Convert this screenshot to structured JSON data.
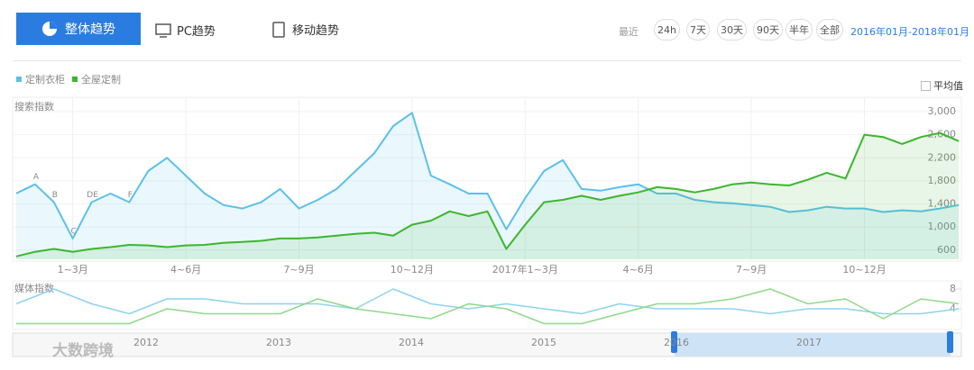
{
  "toolbar": {
    "overall": "整体趋势",
    "pc": "PC趋势",
    "mobile": "移动趋势",
    "recent": "最近",
    "ranges": [
      "24h",
      "7天",
      "30天",
      "90天",
      "半年",
      "全部"
    ],
    "period": "2016年01月-2018年01月",
    "average": "平均值"
  },
  "chart_data": [
    {
      "type": "area",
      "y_label": "搜索指数",
      "categories": [
        null,
        null,
        null,
        "1~3月",
        null,
        null,
        null,
        null,
        null,
        "4~6月",
        null,
        null,
        null,
        null,
        null,
        "7~9月",
        null,
        null,
        null,
        null,
        null,
        "10~12月",
        null,
        null,
        null,
        null,
        null,
        "2017年1~3月",
        null,
        null,
        null,
        null,
        null,
        "4~6月",
        null,
        null,
        null,
        null,
        null,
        "7~9月",
        null,
        null,
        null,
        null,
        null,
        "10~12月",
        null,
        null,
        null,
        null,
        null
      ],
      "series": [
        {
          "name": "定制衣柜",
          "color": "#5bc0eb",
          "fill": "rgba(91,192,235,0.13)",
          "values": [
            1582,
            1740,
            1430,
            800,
            1430,
            1580,
            1430,
            1970,
            2200,
            1890,
            1580,
            1380,
            1320,
            1430,
            1660,
            1320,
            1470,
            1660,
            1970,
            2280,
            2750,
            2980,
            1890,
            1740,
            1580,
            1580,
            960,
            1500,
            1970,
            2160,
            1660,
            1630,
            1690,
            1740,
            1580,
            1580,
            1470,
            1430,
            1410,
            1380,
            1350,
            1260,
            1290,
            1350,
            1320,
            1320,
            1260,
            1290,
            1270,
            1320,
            1380
          ]
        },
        {
          "name": "全屋定制",
          "color": "#3cb62e",
          "fill": "rgba(60,182,46,0.12)",
          "values": [
            490,
            570,
            620,
            570,
            620,
            650,
            690,
            680,
            650,
            680,
            690,
            725,
            740,
            760,
            800,
            800,
            820,
            850,
            880,
            900,
            850,
            1040,
            1110,
            1270,
            1190,
            1270,
            620,
            1040,
            1430,
            1470,
            1540,
            1470,
            1540,
            1600,
            1690,
            1660,
            1600,
            1660,
            1740,
            1770,
            1740,
            1720,
            1820,
            1940,
            1840,
            2600,
            2560,
            2440,
            2560,
            2630,
            2490
          ]
        }
      ],
      "annotations": [
        {
          "text": "A",
          "at": 1
        },
        {
          "text": "B",
          "at": 2
        },
        {
          "text": "C",
          "at": 3
        },
        {
          "text": "DE",
          "at": 4
        },
        {
          "text": "F",
          "at": 6
        }
      ],
      "ylim": [
        440,
        3250
      ],
      "yticks": [
        {
          "value": 600,
          "label": "600"
        },
        {
          "value": 1000,
          "label": "1,000"
        },
        {
          "value": 1400,
          "label": "1,400"
        },
        {
          "value": 1800,
          "label": "1,800"
        },
        {
          "value": 2200,
          "label": "2,200"
        },
        {
          "value": 2600,
          "label": "2,600"
        },
        {
          "value": 3000,
          "label": "3,000"
        }
      ],
      "grid": true
    },
    {
      "type": "line",
      "y_label": "媒体指数",
      "series": [
        {
          "name": "定制衣柜",
          "color": "#8ed3ee",
          "values": [
            5,
            8,
            5,
            3,
            6,
            6,
            5,
            5,
            5,
            4,
            8,
            5,
            4,
            5,
            4,
            3,
            5,
            4,
            4,
            4,
            3,
            4,
            4,
            3,
            3,
            4
          ]
        },
        {
          "name": "全屋定制",
          "color": "#8fd98a",
          "values": [
            1,
            1,
            1,
            1,
            4,
            3,
            3,
            3,
            6,
            4,
            3,
            2,
            5,
            4,
            1,
            1,
            3,
            5,
            5,
            6,
            8,
            5,
            6,
            2,
            6,
            5
          ]
        }
      ],
      "ylim": [
        0,
        9.1
      ],
      "yticks": [
        4,
        8
      ]
    }
  ],
  "navigator": {
    "years": [
      "2012",
      "2013",
      "2014",
      "2015",
      "2016",
      "2017"
    ]
  },
  "watermark": "大数跨境"
}
